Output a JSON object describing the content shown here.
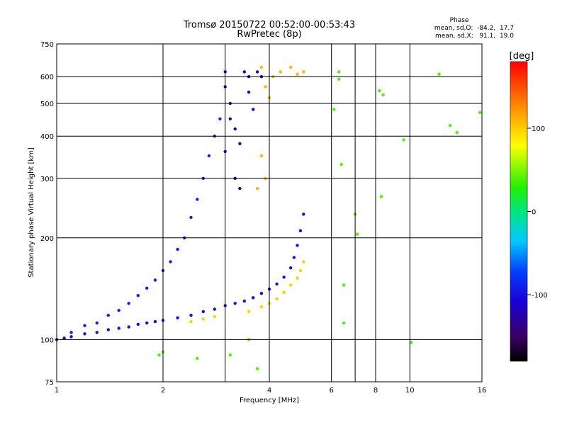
{
  "chart_data": {
    "type": "scatter",
    "title": "Tromsø 20150722 00:52:00-00:53:43",
    "subtitle": "RwPretec (8p)",
    "xlabel": "Frequency [MHz]",
    "ylabel": "Stationary phase Virtual Height [km]",
    "x_scale": "log",
    "y_scale": "log",
    "xlim": [
      1,
      16
    ],
    "ylim": [
      75,
      750
    ],
    "x_ticks": [
      1,
      2,
      4,
      6,
      8,
      10,
      16
    ],
    "x_tick_labels": [
      "1",
      "2",
      "4",
      "6",
      "8",
      "10",
      "16"
    ],
    "x_grid_lines": [
      2,
      3,
      4,
      6,
      7,
      8,
      10,
      16
    ],
    "y_ticks": [
      75,
      100,
      200,
      300,
      400,
      500,
      600,
      750
    ],
    "y_tick_labels": [
      "75",
      "100",
      "200",
      "300",
      "400",
      "500",
      "600",
      "750"
    ],
    "grid": true,
    "stats": {
      "heading": "Phase",
      "o_line": "mean, sd,O:  -84.2,  17.7",
      "x_line": "mean, sd,X:   91.1,  19.0"
    },
    "colorbar": {
      "label": "[deg]",
      "range": [
        -180,
        180
      ],
      "ticks": [
        100,
        0,
        -100
      ],
      "tick_labels": [
        "100",
        "0",
        "-100"
      ],
      "colormap": "rainbow"
    },
    "series": [
      {
        "trace": "O-mode low F trace",
        "phase_mean_deg": -100,
        "points": [
          [
            1.0,
            100
          ],
          [
            1.05,
            101
          ],
          [
            1.1,
            102
          ],
          [
            1.2,
            104
          ],
          [
            1.3,
            105
          ],
          [
            1.4,
            107
          ],
          [
            1.5,
            108
          ],
          [
            1.6,
            109
          ],
          [
            1.7,
            111
          ],
          [
            1.8,
            112
          ],
          [
            1.9,
            113
          ],
          [
            2.0,
            114
          ],
          [
            2.2,
            116
          ],
          [
            2.4,
            118
          ],
          [
            2.6,
            121
          ],
          [
            2.8,
            123
          ],
          [
            3.0,
            126
          ],
          [
            3.2,
            128
          ],
          [
            3.4,
            130
          ],
          [
            3.6,
            133
          ],
          [
            3.8,
            137
          ],
          [
            4.0,
            141
          ],
          [
            4.2,
            146
          ],
          [
            4.4,
            153
          ],
          [
            4.6,
            163
          ],
          [
            4.7,
            175
          ],
          [
            4.8,
            190
          ],
          [
            4.9,
            210
          ],
          [
            5.0,
            235
          ]
        ]
      },
      {
        "trace": "O-mode diffuse spread",
        "phase_mean_deg": -90,
        "points": [
          [
            1.1,
            105
          ],
          [
            1.2,
            110
          ],
          [
            1.3,
            112
          ],
          [
            1.4,
            118
          ],
          [
            1.5,
            122
          ],
          [
            1.6,
            128
          ],
          [
            1.7,
            135
          ],
          [
            1.8,
            142
          ],
          [
            1.9,
            150
          ],
          [
            2.0,
            160
          ],
          [
            2.1,
            170
          ],
          [
            2.2,
            185
          ],
          [
            2.3,
            200
          ],
          [
            2.4,
            230
          ],
          [
            2.5,
            260
          ],
          [
            2.6,
            300
          ],
          [
            2.7,
            350
          ],
          [
            2.8,
            400
          ],
          [
            2.9,
            450
          ]
        ]
      },
      {
        "trace": "O-mode F2 column",
        "phase_mean_deg": -120,
        "points": [
          [
            3.0,
            620
          ],
          [
            3.0,
            560
          ],
          [
            3.1,
            500
          ],
          [
            3.1,
            450
          ],
          [
            3.2,
            420
          ],
          [
            3.3,
            380
          ],
          [
            3.4,
            620
          ],
          [
            3.5,
            600
          ],
          [
            3.5,
            540
          ],
          [
            3.6,
            480
          ],
          [
            3.7,
            620
          ],
          [
            3.8,
            600
          ],
          [
            3.2,
            300
          ],
          [
            3.3,
            280
          ],
          [
            3.0,
            360
          ]
        ]
      },
      {
        "trace": "X-mode trace",
        "phase_mean_deg": 100,
        "points": [
          [
            2.4,
            113
          ],
          [
            2.6,
            115
          ],
          [
            2.8,
            117
          ],
          [
            3.5,
            121
          ],
          [
            3.8,
            125
          ],
          [
            4.0,
            128
          ],
          [
            4.2,
            132
          ],
          [
            4.4,
            138
          ],
          [
            4.6,
            145
          ],
          [
            4.8,
            152
          ],
          [
            4.9,
            160
          ],
          [
            5.0,
            170
          ]
        ]
      },
      {
        "trace": "X-mode F2 column",
        "phase_mean_deg": 110,
        "points": [
          [
            3.8,
            640
          ],
          [
            3.9,
            560
          ],
          [
            4.0,
            520
          ],
          [
            4.1,
            600
          ],
          [
            4.3,
            620
          ],
          [
            4.6,
            640
          ],
          [
            4.8,
            610
          ],
          [
            5.0,
            620
          ],
          [
            3.8,
            350
          ],
          [
            3.9,
            300
          ],
          [
            3.7,
            280
          ]
        ]
      },
      {
        "trace": "Scattered echoes",
        "phase_mean_deg": 40,
        "points": [
          [
            6.3,
            620
          ],
          [
            6.3,
            590
          ],
          [
            6.1,
            480
          ],
          [
            6.4,
            330
          ],
          [
            6.5,
            145
          ],
          [
            6.5,
            112
          ],
          [
            7.0,
            235
          ],
          [
            7.1,
            205
          ],
          [
            8.2,
            545
          ],
          [
            8.4,
            530
          ],
          [
            8.3,
            265
          ],
          [
            9.6,
            390
          ],
          [
            10.1,
            98
          ],
          [
            12.1,
            610
          ],
          [
            13.0,
            430
          ],
          [
            13.6,
            410
          ],
          [
            15.8,
            470
          ],
          [
            2.0,
            92
          ],
          [
            1.95,
            90
          ],
          [
            2.5,
            88
          ],
          [
            3.1,
            90
          ],
          [
            3.5,
            100
          ],
          [
            3.7,
            82
          ]
        ]
      }
    ]
  }
}
